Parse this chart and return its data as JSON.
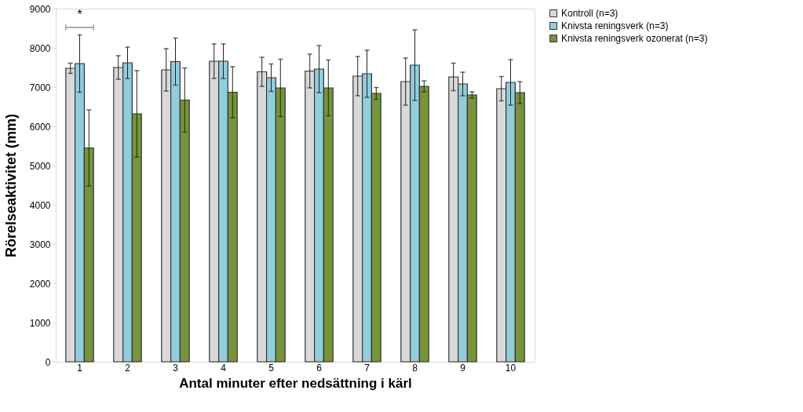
{
  "chart_data": {
    "type": "bar",
    "xlabel": "Antal minuter efter nedsättning i kärl",
    "ylabel": "Rörelseaktivitet (mm)",
    "categories": [
      "1",
      "2",
      "3",
      "4",
      "5",
      "6",
      "7",
      "8",
      "9",
      "10"
    ],
    "series": [
      {
        "name": "Kontroll (n=3)",
        "color": "#d9d9d9",
        "values": [
          7480,
          7500,
          7440,
          7660,
          7390,
          7410,
          7280,
          7140,
          7260,
          6960
        ],
        "errors": [
          130,
          300,
          540,
          440,
          370,
          430,
          500,
          600,
          350,
          310
        ]
      },
      {
        "name": "Knivsta reningsverk (n=3)",
        "color": "#92cddc",
        "values": [
          7600,
          7620,
          7650,
          7660,
          7240,
          7460,
          7340,
          7560,
          7080,
          7120
        ],
        "errors": [
          730,
          400,
          600,
          440,
          350,
          600,
          600,
          900,
          300,
          580
        ]
      },
      {
        "name": "Knivsta reningsverk ozonerat (n=3)",
        "color": "#77933c",
        "values": [
          5450,
          6320,
          6670,
          6870,
          6980,
          6980,
          6840,
          7020,
          6800,
          6860
        ],
        "errors": [
          970,
          1100,
          820,
          650,
          730,
          710,
          150,
          140,
          80,
          280
        ]
      }
    ],
    "ylim": [
      0,
      9000
    ],
    "yticks": [
      0,
      1000,
      2000,
      3000,
      4000,
      5000,
      6000,
      7000,
      8000,
      9000
    ],
    "grid": false,
    "legend": "right",
    "annotations": [
      "*"
    ]
  }
}
